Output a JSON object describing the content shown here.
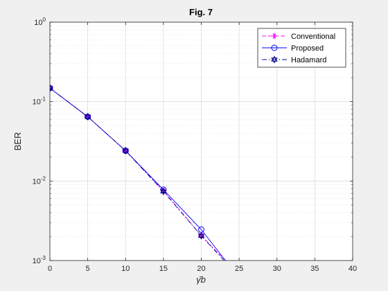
{
  "chart_data": {
    "type": "line",
    "title": "Fig. 7",
    "xlabel": "γ̄b",
    "ylabel": "BER",
    "xlim": [
      0,
      40
    ],
    "ylim": [
      0.001,
      1
    ],
    "yscale": "log",
    "grid": true,
    "minor_grid": true,
    "legend_position": "top-right",
    "x_ticks": [
      0,
      5,
      10,
      15,
      20,
      25,
      30,
      35,
      40
    ],
    "x_tick_labels": [
      "0",
      "5",
      "10",
      "15",
      "20",
      "25",
      "30",
      "35",
      "40"
    ],
    "y_ticks": [
      0.001,
      0.01,
      0.1,
      1
    ],
    "y_tick_labels": [
      {
        "base": "10",
        "exp": "-3"
      },
      {
        "base": "10",
        "exp": "-2"
      },
      {
        "base": "10",
        "exp": "-1"
      },
      {
        "base": "10",
        "exp": "0"
      }
    ],
    "series": [
      {
        "name": "Conventional",
        "color": "#ff00ff",
        "line": "dashed",
        "marker": "asterisk",
        "x": [
          0,
          5,
          10,
          15,
          20,
          23.2
        ],
        "y": [
          0.148,
          0.0645,
          0.0241,
          0.0076,
          0.00205,
          0.001
        ]
      },
      {
        "name": "Proposed",
        "color": "#0000ff",
        "line": "solid",
        "marker": "circle",
        "x": [
          0,
          5,
          10,
          15,
          20,
          23.2
        ],
        "y": [
          0.148,
          0.0645,
          0.0241,
          0.0078,
          0.00245,
          0.001
        ]
      },
      {
        "name": "Hadamard",
        "color": "#000080",
        "line": "dashdot",
        "marker": "hexagram",
        "x": [
          0,
          5,
          10,
          15,
          20,
          23.0
        ],
        "y": [
          0.148,
          0.0645,
          0.0241,
          0.0074,
          0.00205,
          0.001
        ]
      }
    ]
  }
}
